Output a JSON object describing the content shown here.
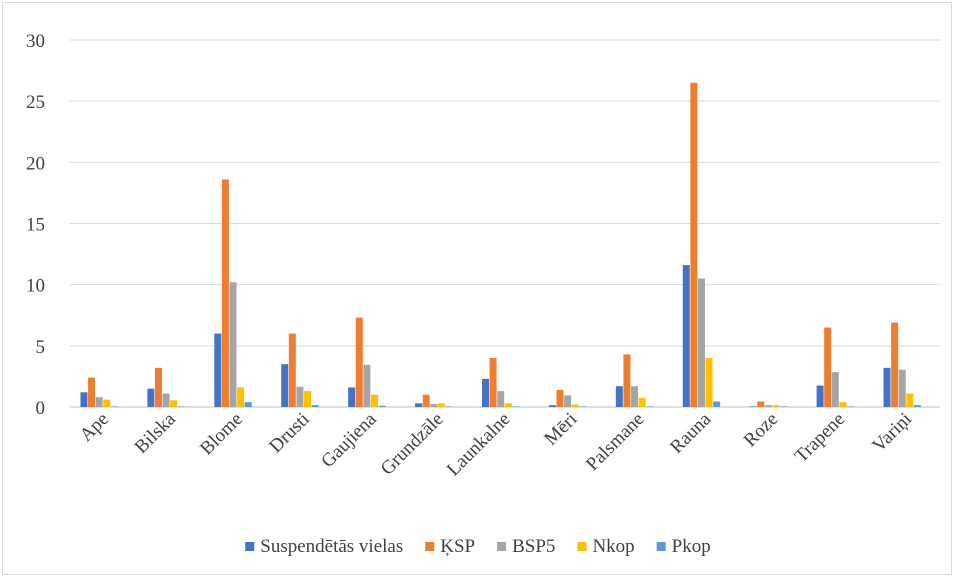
{
  "chart_data": {
    "type": "bar",
    "categories": [
      "Ape",
      "Bilska",
      "Blome",
      "Drusti",
      "Gaujiena",
      "Grundzāle",
      "Launkalne",
      "Mēri",
      "Palsmane",
      "Rauna",
      "Roze",
      "Trapene",
      "Variņi"
    ],
    "series": [
      {
        "name": "Suspendētās vielas",
        "color": "#4472c4",
        "values": [
          1.2,
          1.5,
          6.0,
          3.5,
          1.6,
          0.3,
          2.3,
          0.15,
          1.7,
          11.6,
          0.05,
          1.75,
          3.2
        ]
      },
      {
        "name": "ĶSP",
        "color": "#ed7d31",
        "values": [
          2.4,
          3.2,
          18.6,
          6.0,
          7.3,
          1.0,
          4.0,
          1.4,
          4.3,
          26.5,
          0.45,
          6.5,
          6.9
        ]
      },
      {
        "name": "BSP5",
        "color": "#a5a5a5",
        "values": [
          0.8,
          1.1,
          10.2,
          1.65,
          3.45,
          0.25,
          1.3,
          0.95,
          1.7,
          10.5,
          0.15,
          2.85,
          3.05
        ]
      },
      {
        "name": "Nkop",
        "color": "#ffc000",
        "values": [
          0.6,
          0.55,
          1.6,
          1.3,
          1.0,
          0.3,
          0.3,
          0.2,
          0.75,
          4.0,
          0.15,
          0.4,
          1.1
        ]
      },
      {
        "name": "Pkop",
        "color": "#5b9bd5",
        "values": [
          0.05,
          0.05,
          0.4,
          0.15,
          0.1,
          0.05,
          0.05,
          0.05,
          0.05,
          0.45,
          0.05,
          0.05,
          0.15
        ]
      }
    ],
    "yticks": [
      "0",
      "5",
      "10",
      "15",
      "20",
      "25",
      "30"
    ],
    "ylim": [
      0,
      30
    ],
    "grid": true,
    "legend_position": "bottom"
  }
}
